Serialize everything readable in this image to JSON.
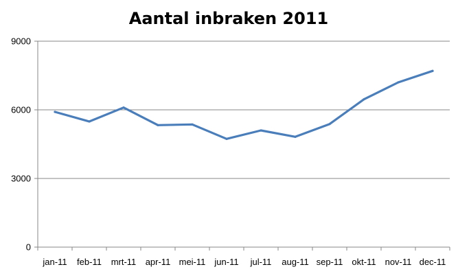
{
  "chart_data": {
    "type": "line",
    "title": "Aantal inbraken 2011",
    "categories": [
      "jan-11",
      "feb-11",
      "mrt-11",
      "apr-11",
      "mei-11",
      "jun-11",
      "jul-11",
      "aug-11",
      "sep-11",
      "okt-11",
      "nov-11",
      "dec-11"
    ],
    "series": [
      {
        "values": [
          5910,
          5490,
          6100,
          5330,
          5360,
          4730,
          5100,
          4820,
          5380,
          6460,
          7200,
          7700
        ],
        "color": "#4a7ebb"
      }
    ],
    "ylim": [
      0,
      9000
    ],
    "yticks": [
      0,
      3000,
      6000,
      9000
    ],
    "ytick_labels": [
      "0",
      "3000",
      "6000",
      "9000"
    ],
    "xlabel": "",
    "ylabel": "",
    "grid": "horizontal",
    "legend": "none"
  }
}
